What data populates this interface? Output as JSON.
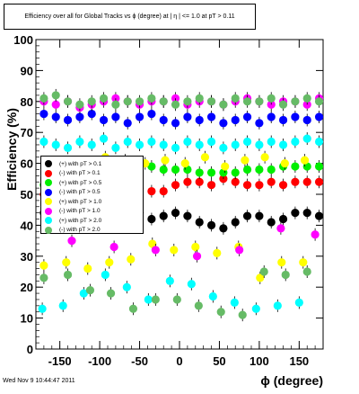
{
  "footer": {
    "timestamp": "Wed Nov  9 10:44:47 2011"
  },
  "chart_data": {
    "type": "scatter",
    "title": "Efficiency over all for Global Tracks vs ϕ (degree) at | η | <= 1.0 at pT > 0.11",
    "xlabel": "ϕ (degree)",
    "ylabel": "Efficiency (%)",
    "xlim": [
      -180,
      180
    ],
    "ylim": [
      0,
      100
    ],
    "x_ticks": [
      -150,
      -100,
      -50,
      0,
      50,
      100,
      150
    ],
    "y_ticks": [
      0,
      10,
      20,
      30,
      40,
      50,
      60,
      70,
      80,
      90,
      100
    ],
    "grid": false,
    "legend_position": "center-left",
    "series": [
      {
        "name": "(+) with pT > 0.1",
        "color": "#000000",
        "x": [
          -170,
          -155,
          -140,
          -125,
          -110,
          -95,
          -80,
          -65,
          -50,
          -35,
          -20,
          -5,
          10,
          25,
          40,
          55,
          70,
          85,
          100,
          115,
          130,
          145,
          160,
          175
        ],
        "values": [
          44,
          45,
          43,
          44,
          42,
          44,
          44,
          43,
          44,
          42,
          43,
          44,
          43,
          41,
          40,
          39,
          41,
          43,
          43,
          41,
          42,
          44,
          44,
          43
        ]
      },
      {
        "name": "(-) with pT > 0.1",
        "color": "#ff0000",
        "x": [
          -170,
          -155,
          -140,
          -125,
          -110,
          -95,
          -80,
          -65,
          -50,
          -35,
          -20,
          -5,
          10,
          25,
          40,
          55,
          70,
          85,
          100,
          115,
          130,
          145,
          160,
          175
        ],
        "values": [
          50,
          49,
          49,
          50,
          49,
          50,
          50,
          51,
          52,
          51,
          51,
          53,
          54,
          54,
          53,
          55,
          54,
          53,
          53,
          54,
          53,
          54,
          54,
          54
        ]
      },
      {
        "name": "(+) with pT > 0.5",
        "color": "#00ee00",
        "x": [
          -170,
          -155,
          -140,
          -125,
          -110,
          -95,
          -80,
          -65,
          -50,
          -35,
          -20,
          -5,
          10,
          25,
          40,
          55,
          70,
          85,
          100,
          115,
          130,
          145,
          160,
          175
        ],
        "values": [
          53,
          54,
          56,
          57,
          57,
          58,
          58,
          58,
          59,
          59,
          58,
          58,
          58,
          57,
          57,
          57,
          57,
          58,
          58,
          58,
          59,
          59,
          59,
          59
        ]
      },
      {
        "name": "(-) with pT > 0.5",
        "color": "#0000ff",
        "x": [
          -170,
          -155,
          -140,
          -125,
          -110,
          -95,
          -80,
          -65,
          -50,
          -35,
          -20,
          -5,
          10,
          25,
          40,
          55,
          70,
          85,
          100,
          115,
          130,
          145,
          160,
          175
        ],
        "values": [
          76,
          75,
          74,
          75,
          76,
          74,
          75,
          73,
          75,
          76,
          74,
          73,
          75,
          74,
          75,
          73,
          74,
          75,
          73,
          75,
          74,
          75,
          74,
          75
        ]
      },
      {
        "name": "(+) with pT > 1.0",
        "color": "#ffff00",
        "x": [
          -168,
          -143,
          -118,
          -93,
          -68,
          -43,
          -18,
          7,
          32,
          57,
          82,
          107,
          132,
          157
        ],
        "values": [
          59,
          60,
          59,
          62,
          61,
          60,
          61,
          60,
          62,
          59,
          61,
          62,
          60,
          61
        ]
      },
      {
        "name": "(-) with pT > 1.0",
        "color": "#ff00ff",
        "x": [
          -170,
          -155,
          -140,
          -125,
          -110,
          -95,
          -80,
          -65,
          -50,
          -35,
          -20,
          -5,
          10,
          25,
          40,
          55,
          70,
          85,
          100,
          115,
          130,
          145,
          160,
          175
        ],
        "values": [
          80,
          79,
          80,
          78,
          79,
          80,
          81,
          80,
          79,
          80,
          80,
          81,
          79,
          80,
          80,
          79,
          80,
          81,
          80,
          79,
          80,
          80,
          79,
          81
        ]
      },
      {
        "name": "(+) with pT > 2.0",
        "color": "#00ffff",
        "x": [
          -170,
          -155,
          -140,
          -125,
          -110,
          -95,
          -80,
          -65,
          -50,
          -35,
          -20,
          -5,
          10,
          25,
          40,
          55,
          70,
          85,
          100,
          115,
          130,
          145,
          160,
          175
        ],
        "values": [
          67,
          66,
          65,
          67,
          66,
          68,
          65,
          67,
          66,
          67,
          66,
          65,
          67,
          66,
          67,
          65,
          66,
          67,
          66,
          67,
          66,
          67,
          68,
          67
        ]
      },
      {
        "name": "(-) with pT > 2.0",
        "color": "#66bb66",
        "x": [
          -170,
          -155,
          -140,
          -125,
          -110,
          -95,
          -80,
          -65,
          -50,
          -35,
          -20,
          -5,
          10,
          25,
          40,
          55,
          70,
          85,
          100,
          115,
          130,
          145,
          160,
          175
        ],
        "values": [
          81,
          82,
          80,
          79,
          80,
          81,
          79,
          80,
          80,
          81,
          80,
          79,
          80,
          81,
          80,
          79,
          81,
          80,
          80,
          81,
          79,
          80,
          81,
          80
        ]
      }
    ],
    "low_points": [
      {
        "series": 4,
        "x": [
          -170,
          -142,
          -115,
          -88,
          -61,
          -34,
          -7,
          20,
          47,
          74,
          101,
          128,
          155
        ],
        "values": [
          27,
          28,
          26,
          28,
          29,
          34,
          32,
          33,
          31,
          33,
          23,
          28,
          28
        ]
      },
      {
        "series": 5,
        "x": [
          -135,
          -82,
          -30,
          22,
          75,
          127,
          170
        ],
        "values": [
          35,
          33,
          32,
          30,
          32,
          39,
          37
        ]
      },
      {
        "series": 6,
        "x": [
          -172,
          -146,
          -120,
          -93,
          -66,
          -39,
          -12,
          15,
          42,
          69,
          96,
          123,
          150
        ],
        "values": [
          13,
          14,
          18,
          24,
          20,
          16,
          22,
          21,
          17,
          15,
          13,
          14,
          15
        ]
      },
      {
        "series": 7,
        "x": [
          -170,
          -140,
          -112,
          -86,
          -58,
          -30,
          -3,
          24,
          52,
          79,
          106,
          133,
          160
        ],
        "values": [
          23,
          24,
          19,
          18,
          13,
          16,
          16,
          14,
          12,
          11,
          25,
          24,
          25
        ]
      }
    ]
  }
}
